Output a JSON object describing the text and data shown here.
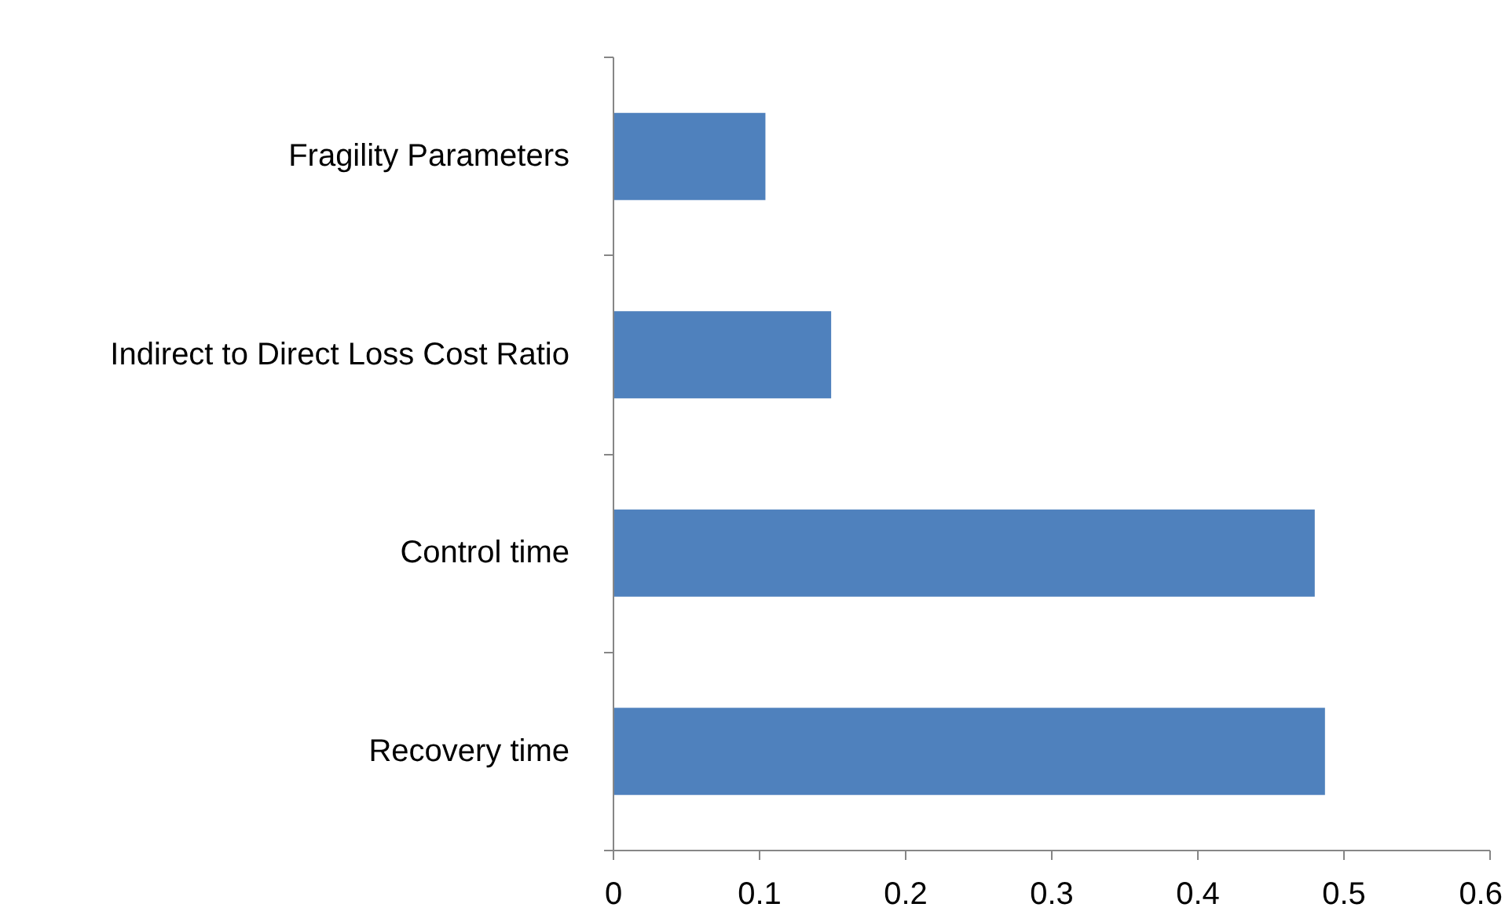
{
  "chart_data": {
    "type": "bar",
    "orientation": "horizontal",
    "categories": [
      "Fragility Parameters",
      "Indirect to Direct Loss Cost Ratio",
      "Control time",
      "Recovery time"
    ],
    "values": [
      0.104,
      0.149,
      0.48,
      0.487
    ],
    "color": "#4f81bd",
    "xlim": [
      0,
      0.6
    ],
    "xticks": [
      0,
      0.1,
      0.2,
      0.3,
      0.4,
      0.5,
      0.6
    ],
    "grid": false
  }
}
